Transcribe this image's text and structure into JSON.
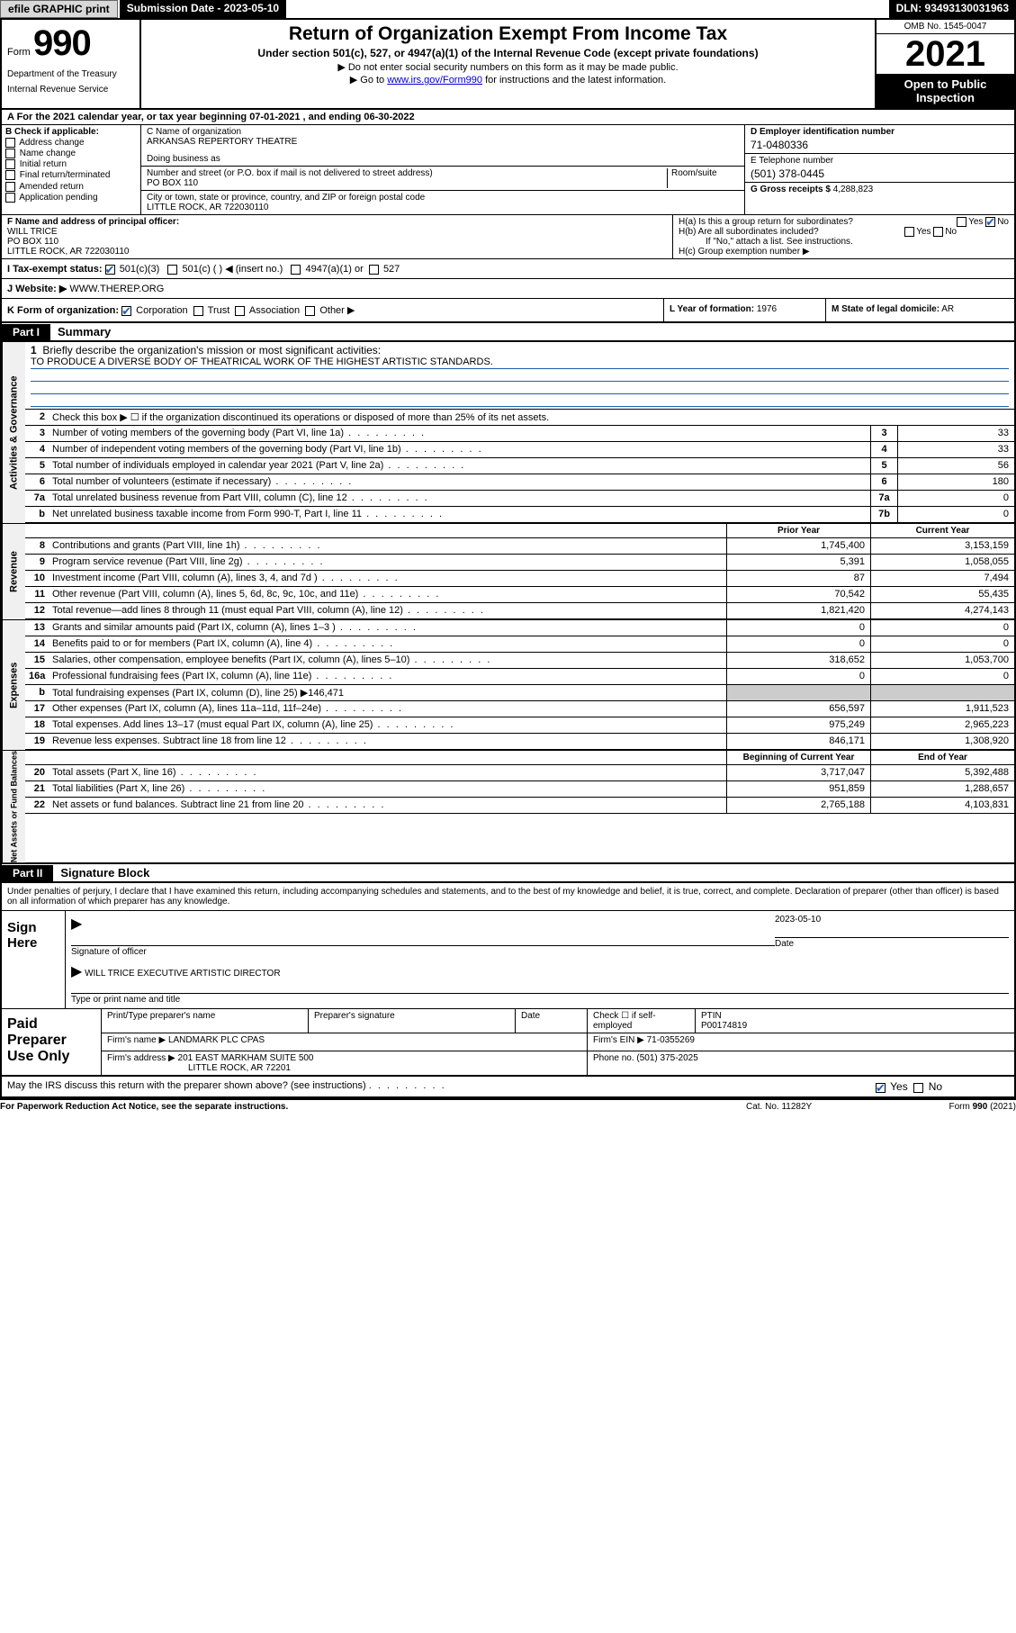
{
  "colors": {
    "link": "#0000cc",
    "black": "#000000",
    "white": "#ffffff",
    "shade": "#cccccc",
    "check": "#1a5fb4",
    "btn_bg": "#d8d8d8",
    "side_bg": "#f0f0f0"
  },
  "topbar": {
    "efile": "efile GRAPHIC print",
    "submission": "Submission Date - 2023-05-10",
    "dln": "DLN: 93493130031963"
  },
  "header": {
    "form_label": "Form",
    "form_number": "990",
    "dept": "Department of the Treasury",
    "irs": "Internal Revenue Service",
    "title": "Return of Organization Exempt From Income Tax",
    "sub1": "Under section 501(c), 527, or 4947(a)(1) of the Internal Revenue Code (except private foundations)",
    "sub2": "▶ Do not enter social security numbers on this form as it may be made public.",
    "sub3_pre": "▶ Go to ",
    "sub3_link": "www.irs.gov/Form990",
    "sub3_post": " for instructions and the latest information.",
    "omb": "OMB No. 1545-0047",
    "year": "2021",
    "open": "Open to Public Inspection"
  },
  "row_a": "A For the 2021 calendar year, or tax year beginning 07-01-2021     , and ending 06-30-2022",
  "col_b": {
    "label": "B Check if applicable:",
    "opts": [
      "Address change",
      "Name change",
      "Initial return",
      "Final return/terminated",
      "Amended return",
      "Application pending"
    ]
  },
  "col_c": {
    "name_lbl": "C Name of organization",
    "name": "ARKANSAS REPERTORY THEATRE",
    "dba_lbl": "Doing business as",
    "dba": "",
    "addr_lbl": "Number and street (or P.O. box if mail is not delivered to street address)",
    "room_lbl": "Room/suite",
    "addr": "PO BOX 110",
    "city_lbl": "City or town, state or province, country, and ZIP or foreign postal code",
    "city": "LITTLE ROCK, AR   722030110"
  },
  "col_d": {
    "ein_lbl": "D Employer identification number",
    "ein": "71-0480336",
    "tel_lbl": "E Telephone number",
    "tel": "(501) 378-0445",
    "gross_lbl": "G Gross receipts $",
    "gross": "4,288,823"
  },
  "col_f": {
    "lbl": "F Name and address of principal officer:",
    "name": "WILL TRICE",
    "addr1": "PO BOX 110",
    "addr2": "LITTLE ROCK, AR   722030110"
  },
  "col_h": {
    "ha": "H(a)  Is this a group return for subordinates?",
    "hb": "H(b)  Are all subordinates included?",
    "hb_note": "If \"No,\" attach a list. See instructions.",
    "hc": "H(c)  Group exemption number ▶"
  },
  "row_i": {
    "lbl": "I   Tax-exempt status:",
    "o1": "501(c)(3)",
    "o2": "501(c) (  ) ◀ (insert no.)",
    "o3": "4947(a)(1) or",
    "o4": "527"
  },
  "row_j": {
    "lbl": "J   Website: ▶",
    "val": "WWW.THEREP.ORG"
  },
  "row_k": {
    "lbl": "K Form of organization:",
    "o1": "Corporation",
    "o2": "Trust",
    "o3": "Association",
    "o4": "Other ▶",
    "yof_lbl": "L Year of formation:",
    "yof": "1976",
    "dom_lbl": "M State of legal domicile:",
    "dom": "AR"
  },
  "part1": {
    "label": "Part I",
    "title": "Summary"
  },
  "summary": {
    "l1_lbl": "Briefly describe the organization's mission or most significant activities:",
    "l1_val": "TO PRODUCE A DIVERSE BODY OF THEATRICAL WORK OF THE HIGHEST ARTISTIC STANDARDS.",
    "l2": "Check this box ▶  ☐  if the organization discontinued its operations or disposed of more than 25% of its net assets.",
    "lines_a": [
      {
        "n": "3",
        "d": "Number of voting members of the governing body (Part VI, line 1a)",
        "box": "3",
        "v": "33"
      },
      {
        "n": "4",
        "d": "Number of independent voting members of the governing body (Part VI, line 1b)",
        "box": "4",
        "v": "33"
      },
      {
        "n": "5",
        "d": "Total number of individuals employed in calendar year 2021 (Part V, line 2a)",
        "box": "5",
        "v": "56"
      },
      {
        "n": "6",
        "d": "Total number of volunteers (estimate if necessary)",
        "box": "6",
        "v": "180"
      },
      {
        "n": "7a",
        "d": "Total unrelated business revenue from Part VIII, column (C), line 12",
        "box": "7a",
        "v": "0"
      },
      {
        "n": "b",
        "d": "Net unrelated business taxable income from Form 990-T, Part I, line 11",
        "box": "7b",
        "v": "0"
      }
    ],
    "hdr_prior": "Prior Year",
    "hdr_current": "Current Year",
    "revenue": [
      {
        "n": "8",
        "d": "Contributions and grants (Part VIII, line 1h)",
        "p": "1,745,400",
        "c": "3,153,159"
      },
      {
        "n": "9",
        "d": "Program service revenue (Part VIII, line 2g)",
        "p": "5,391",
        "c": "1,058,055"
      },
      {
        "n": "10",
        "d": "Investment income (Part VIII, column (A), lines 3, 4, and 7d )",
        "p": "87",
        "c": "7,494"
      },
      {
        "n": "11",
        "d": "Other revenue (Part VIII, column (A), lines 5, 6d, 8c, 9c, 10c, and 11e)",
        "p": "70,542",
        "c": "55,435"
      },
      {
        "n": "12",
        "d": "Total revenue—add lines 8 through 11 (must equal Part VIII, column (A), line 12)",
        "p": "1,821,420",
        "c": "4,274,143"
      }
    ],
    "expenses": [
      {
        "n": "13",
        "d": "Grants and similar amounts paid (Part IX, column (A), lines 1–3 )",
        "p": "0",
        "c": "0"
      },
      {
        "n": "14",
        "d": "Benefits paid to or for members (Part IX, column (A), line 4)",
        "p": "0",
        "c": "0"
      },
      {
        "n": "15",
        "d": "Salaries, other compensation, employee benefits (Part IX, column (A), lines 5–10)",
        "p": "318,652",
        "c": "1,053,700"
      },
      {
        "n": "16a",
        "d": "Professional fundraising fees (Part IX, column (A), line 11e)",
        "p": "0",
        "c": "0"
      }
    ],
    "l16b_pre": "Total fundraising expenses (Part IX, column (D), line 25) ▶",
    "l16b_val": "146,471",
    "expenses2": [
      {
        "n": "17",
        "d": "Other expenses (Part IX, column (A), lines 11a–11d, 11f–24e)",
        "p": "656,597",
        "c": "1,911,523"
      },
      {
        "n": "18",
        "d": "Total expenses. Add lines 13–17 (must equal Part IX, column (A), line 25)",
        "p": "975,249",
        "c": "2,965,223"
      },
      {
        "n": "19",
        "d": "Revenue less expenses. Subtract line 18 from line 12",
        "p": "846,171",
        "c": "1,308,920"
      }
    ],
    "hdr_begin": "Beginning of Current Year",
    "hdr_end": "End of Year",
    "netassets": [
      {
        "n": "20",
        "d": "Total assets (Part X, line 16)",
        "p": "3,717,047",
        "c": "5,392,488"
      },
      {
        "n": "21",
        "d": "Total liabilities (Part X, line 26)",
        "p": "951,859",
        "c": "1,288,657"
      },
      {
        "n": "22",
        "d": "Net assets or fund balances. Subtract line 21 from line 20",
        "p": "2,765,188",
        "c": "4,103,831"
      }
    ]
  },
  "side_labels": {
    "gov": "Activities & Governance",
    "rev": "Revenue",
    "exp": "Expenses",
    "net": "Net Assets or Fund Balances"
  },
  "part2": {
    "label": "Part II",
    "title": "Signature Block"
  },
  "sig": {
    "intro": "Under penalties of perjury, I declare that I have examined this return, including accompanying schedules and statements, and to the best of my knowledge and belief, it is true, correct, and complete. Declaration of preparer (other than officer) is based on all information of which preparer has any knowledge.",
    "sign_here": "Sign Here",
    "sig_of_officer": "Signature of officer",
    "date_lbl": "Date",
    "date": "2023-05-10",
    "officer_name": "WILL TRICE  EXECUTIVE ARTISTIC DIRECTOR",
    "type_name": "Type or print name and title"
  },
  "prep": {
    "label": "Paid Preparer Use Only",
    "h1": "Print/Type preparer's name",
    "h2": "Preparer's signature",
    "h3": "Date",
    "h4": "Check ☐ if self-employed",
    "h5_lbl": "PTIN",
    "h5": "P00174819",
    "firm_name_lbl": "Firm's name      ▶",
    "firm_name": "LANDMARK PLC CPAS",
    "firm_ein_lbl": "Firm's EIN ▶",
    "firm_ein": "71-0355269",
    "firm_addr_lbl": "Firm's address  ▶",
    "firm_addr1": "201 EAST MARKHAM SUITE 500",
    "firm_addr2": "LITTLE ROCK, AR  72201",
    "phone_lbl": "Phone no.",
    "phone": "(501) 375-2025"
  },
  "discuss": {
    "q": "May the IRS discuss this return with the preparer shown above? (see instructions)",
    "yes": "Yes",
    "no": "No"
  },
  "footer": {
    "l": "For Paperwork Reduction Act Notice, see the separate instructions.",
    "m": "Cat. No. 11282Y",
    "r": "Form 990 (2021)"
  }
}
